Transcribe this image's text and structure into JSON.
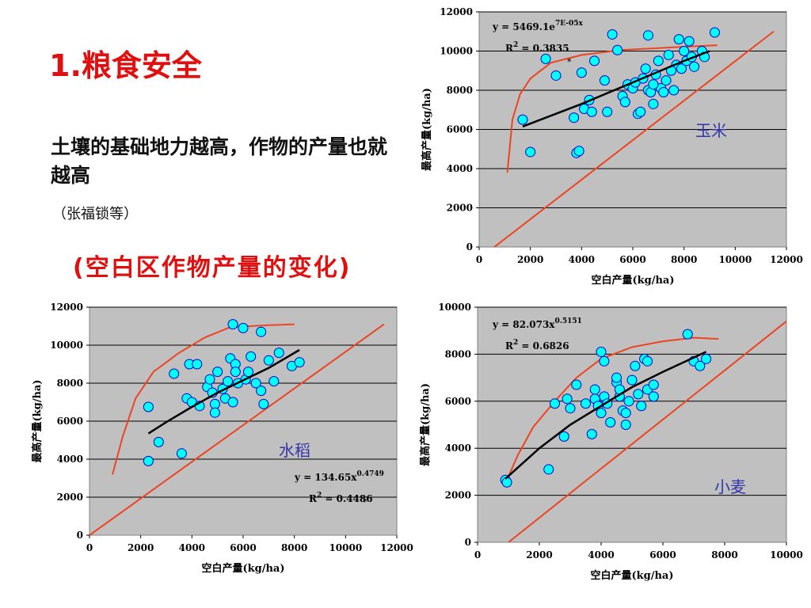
{
  "slide": {
    "title": "1.粮食安全",
    "subtitle": "土壤的基础地力越高，作物的产量也就越高",
    "author": "（张福锁等）",
    "note": "(空白区作物产量的变化)"
  },
  "colors": {
    "plot_bg": "#c0c0c0",
    "point_fill": "#00ffff",
    "point_stroke": "#0000cc",
    "trend": "#000000",
    "envelope": "#ee4422",
    "crop_label": "#3333aa"
  },
  "chart_data": [
    {
      "type": "scatter",
      "label": "玉米",
      "xlabel": "空白产量(kg/ha)",
      "ylabel": "最高产量(kg/ha)",
      "xlim": [
        0,
        12000
      ],
      "ylim": [
        0,
        12000
      ],
      "xticks": [
        0,
        2000,
        4000,
        6000,
        8000,
        10000,
        12000
      ],
      "yticks": [
        0,
        2000,
        4000,
        6000,
        8000,
        10000,
        12000
      ],
      "grid": true,
      "equation_base": "y = 5469.1e",
      "equation_exp": "7E-05x",
      "r2_label": "R",
      "r2_exp": "2",
      "r2_value": " = 0.3835",
      "points": [
        [
          1700,
          6500
        ],
        [
          2000,
          4850
        ],
        [
          2600,
          9600
        ],
        [
          3000,
          8750
        ],
        [
          3700,
          6600
        ],
        [
          3800,
          4800
        ],
        [
          3900,
          4900
        ],
        [
          4000,
          8900
        ],
        [
          4100,
          7050
        ],
        [
          4300,
          7500
        ],
        [
          4400,
          6900
        ],
        [
          4500,
          9500
        ],
        [
          4900,
          8500
        ],
        [
          5000,
          6900
        ],
        [
          5200,
          10850
        ],
        [
          5400,
          10050
        ],
        [
          5600,
          7700
        ],
        [
          5700,
          7400
        ],
        [
          5800,
          8300
        ],
        [
          6000,
          8100
        ],
        [
          6100,
          8400
        ],
        [
          6200,
          6800
        ],
        [
          6300,
          6900
        ],
        [
          6400,
          8600
        ],
        [
          6500,
          9100
        ],
        [
          6600,
          8000
        ],
        [
          6600,
          10800
        ],
        [
          6700,
          7900
        ],
        [
          6800,
          7300
        ],
        [
          6900,
          8800
        ],
        [
          7000,
          9500
        ],
        [
          7100,
          8100
        ],
        [
          7200,
          7900
        ],
        [
          7300,
          8500
        ],
        [
          7400,
          9800
        ],
        [
          7600,
          8000
        ],
        [
          7700,
          9300
        ],
        [
          7800,
          10600
        ],
        [
          7900,
          9100
        ],
        [
          8000,
          10000
        ],
        [
          8100,
          9500
        ],
        [
          8200,
          10500
        ],
        [
          8300,
          9700
        ],
        [
          8400,
          9200
        ],
        [
          8700,
          10000
        ],
        [
          8800,
          9700
        ],
        [
          9200,
          10950
        ],
        [
          7500,
          9000
        ],
        [
          6800,
          8300
        ]
      ],
      "trend": [
        [
          1700,
          6150
        ],
        [
          3000,
          6800
        ],
        [
          4000,
          7300
        ],
        [
          5000,
          7850
        ],
        [
          6000,
          8400
        ],
        [
          7000,
          8950
        ],
        [
          8000,
          9500
        ],
        [
          9000,
          10000
        ]
      ],
      "envelope": [
        [
          1100,
          3800
        ],
        [
          1300,
          6500
        ],
        [
          1600,
          7800
        ],
        [
          2000,
          8600
        ],
        [
          2800,
          9400
        ],
        [
          4000,
          9800
        ],
        [
          5500,
          10050
        ],
        [
          7000,
          10150
        ],
        [
          8500,
          10250
        ],
        [
          9300,
          10300
        ]
      ],
      "line": [
        [
          -300,
          -900
        ],
        [
          11500,
          11000
        ]
      ]
    },
    {
      "type": "scatter",
      "label": "水稻",
      "xlabel": "空白产量(kg/ha)",
      "ylabel": "最高产量(kg/ha)",
      "xlim": [
        0,
        12000
      ],
      "ylim": [
        0,
        12000
      ],
      "xticks": [
        0,
        2000,
        4000,
        6000,
        8000,
        10000,
        12000
      ],
      "yticks": [
        0,
        2000,
        4000,
        6000,
        8000,
        10000,
        12000
      ],
      "grid": true,
      "equation_base": "y = 134.65x",
      "equation_exp": "0.4749",
      "r2_label": "R",
      "r2_exp": "2",
      "r2_value": " = 0.4486",
      "points": [
        [
          2300,
          6750
        ],
        [
          2300,
          3900
        ],
        [
          2700,
          4900
        ],
        [
          3300,
          8500
        ],
        [
          3600,
          4300
        ],
        [
          3800,
          7200
        ],
        [
          3900,
          9000
        ],
        [
          4000,
          7000
        ],
        [
          4200,
          9000
        ],
        [
          4300,
          6800
        ],
        [
          4600,
          7800
        ],
        [
          4700,
          8200
        ],
        [
          4800,
          7500
        ],
        [
          4900,
          6900
        ],
        [
          4900,
          6450
        ],
        [
          5000,
          8600
        ],
        [
          5200,
          7700
        ],
        [
          5300,
          7200
        ],
        [
          5400,
          8100
        ],
        [
          5500,
          9300
        ],
        [
          5600,
          7000
        ],
        [
          5700,
          9000
        ],
        [
          5700,
          8600
        ],
        [
          5800,
          8000
        ],
        [
          6000,
          10900
        ],
        [
          6100,
          8200
        ],
        [
          6200,
          8600
        ],
        [
          6300,
          9400
        ],
        [
          6500,
          8000
        ],
        [
          6700,
          7600
        ],
        [
          6700,
          10700
        ],
        [
          6800,
          6900
        ],
        [
          7000,
          9200
        ],
        [
          7200,
          8100
        ],
        [
          7400,
          9600
        ],
        [
          7900,
          8900
        ],
        [
          8200,
          9100
        ],
        [
          5600,
          11100
        ]
      ],
      "trend": [
        [
          2300,
          5350
        ],
        [
          3000,
          5950
        ],
        [
          4000,
          6750
        ],
        [
          5000,
          7500
        ],
        [
          6000,
          8150
        ],
        [
          7000,
          8800
        ],
        [
          8200,
          9750
        ]
      ],
      "envelope": [
        [
          900,
          3200
        ],
        [
          1300,
          5200
        ],
        [
          1800,
          7200
        ],
        [
          2500,
          8600
        ],
        [
          3500,
          9600
        ],
        [
          4500,
          10400
        ],
        [
          5500,
          10950
        ],
        [
          7000,
          11050
        ],
        [
          8000,
          11100
        ]
      ],
      "line": [
        [
          0,
          0
        ],
        [
          11500,
          11100
        ]
      ]
    },
    {
      "type": "scatter",
      "label": "小麦",
      "xlabel": "空白产量(kg/ha)",
      "ylabel": "最高产量(kg/ha)",
      "xlim": [
        0,
        10000
      ],
      "ylim": [
        0,
        10000
      ],
      "xticks": [
        0,
        2000,
        4000,
        6000,
        8000,
        10000
      ],
      "yticks": [
        0,
        2000,
        4000,
        6000,
        8000,
        10000
      ],
      "grid": true,
      "equation_base": "y = 82.073x",
      "equation_exp": "0.5151",
      "r2_label": "R",
      "r2_exp": "2",
      "r2_value": " = 0.6826",
      "points": [
        [
          900,
          2650
        ],
        [
          950,
          2550
        ],
        [
          2300,
          3100
        ],
        [
          2500,
          5900
        ],
        [
          2900,
          6100
        ],
        [
          3000,
          5700
        ],
        [
          3200,
          6700
        ],
        [
          2800,
          4500
        ],
        [
          3500,
          5900
        ],
        [
          3700,
          4600
        ],
        [
          3800,
          6500
        ],
        [
          3800,
          6100
        ],
        [
          3900,
          5800
        ],
        [
          4000,
          5500
        ],
        [
          4000,
          8100
        ],
        [
          4100,
          7700
        ],
        [
          4100,
          6200
        ],
        [
          4200,
          5900
        ],
        [
          4300,
          5100
        ],
        [
          4500,
          6800
        ],
        [
          4500,
          7000
        ],
        [
          4600,
          6200
        ],
        [
          4600,
          6500
        ],
        [
          4700,
          5600
        ],
        [
          4800,
          5000
        ],
        [
          4800,
          5500
        ],
        [
          4900,
          6000
        ],
        [
          5000,
          6900
        ],
        [
          5100,
          7500
        ],
        [
          5200,
          6300
        ],
        [
          5300,
          5800
        ],
        [
          5400,
          7800
        ],
        [
          5500,
          7700
        ],
        [
          5500,
          6500
        ],
        [
          5700,
          6700
        ],
        [
          5700,
          6200
        ],
        [
          6800,
          8850
        ],
        [
          7000,
          7700
        ],
        [
          7200,
          7500
        ],
        [
          7400,
          7800
        ]
      ],
      "trend": [
        [
          900,
          2700
        ],
        [
          2000,
          4000
        ],
        [
          3000,
          5000
        ],
        [
          4000,
          5800
        ],
        [
          5000,
          6600
        ],
        [
          6000,
          7250
        ],
        [
          7400,
          8100
        ]
      ],
      "envelope": [
        [
          900,
          2500
        ],
        [
          1300,
          3700
        ],
        [
          1800,
          4900
        ],
        [
          2500,
          6000
        ],
        [
          3200,
          7000
        ],
        [
          4000,
          7800
        ],
        [
          5000,
          8300
        ],
        [
          6000,
          8550
        ],
        [
          7000,
          8700
        ],
        [
          7800,
          8650
        ]
      ],
      "line": [
        [
          1000,
          0
        ],
        [
          10000,
          9400
        ]
      ]
    }
  ]
}
